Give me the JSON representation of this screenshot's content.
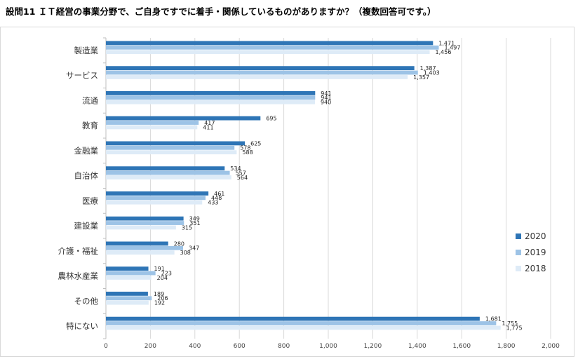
{
  "chart_data": {
    "type": "bar",
    "orientation": "horizontal",
    "title": "設問11 ＩＴ経営の事業分野で、ご自身ですでに着手・関係しているものがありますか？（複数回答可です。）",
    "categories": [
      "製造業",
      "サービス",
      "流通",
      "教育",
      "金融業",
      "自治体",
      "医療",
      "建設業",
      "介護・福祉",
      "農林水産業",
      "その他",
      "特にない"
    ],
    "series": [
      {
        "name": "2020",
        "color": "#2e75b6",
        "values": [
          1471,
          1387,
          941,
          695,
          625,
          534,
          461,
          349,
          280,
          191,
          189,
          1681
        ],
        "labels": [
          "1,471",
          "1,387",
          "941",
          "695",
          "625",
          "534",
          "461",
          "349",
          "280",
          "191",
          "189",
          "1,681"
        ]
      },
      {
        "name": "2019",
        "color": "#9dc3e6",
        "values": [
          1497,
          1403,
          941,
          417,
          578,
          557,
          448,
          351,
          347,
          223,
          206,
          1755
        ],
        "labels": [
          "1,497",
          "1,403",
          "941",
          "417",
          "578",
          "557",
          "448",
          "351",
          "347",
          "223",
          "206",
          "1,755"
        ]
      },
      {
        "name": "2018",
        "color": "#deebf7",
        "values": [
          1456,
          1357,
          940,
          411,
          588,
          564,
          433,
          315,
          308,
          204,
          192,
          1775
        ],
        "labels": [
          "1,456",
          "1,357",
          "940",
          "411",
          "588",
          "564",
          "433",
          "315",
          "308",
          "204",
          "192",
          "1,775"
        ]
      }
    ],
    "xlim": [
      0,
      2000
    ],
    "xticks": [
      0,
      200,
      400,
      600,
      800,
      1000,
      1200,
      1400,
      1600,
      1800,
      2000
    ],
    "xtick_labels": [
      "0",
      "200",
      "400",
      "600",
      "800",
      "1,000",
      "1,200",
      "1,400",
      "1,600",
      "1,800",
      "2,000"
    ],
    "grid": "vertical",
    "legend": "right"
  }
}
